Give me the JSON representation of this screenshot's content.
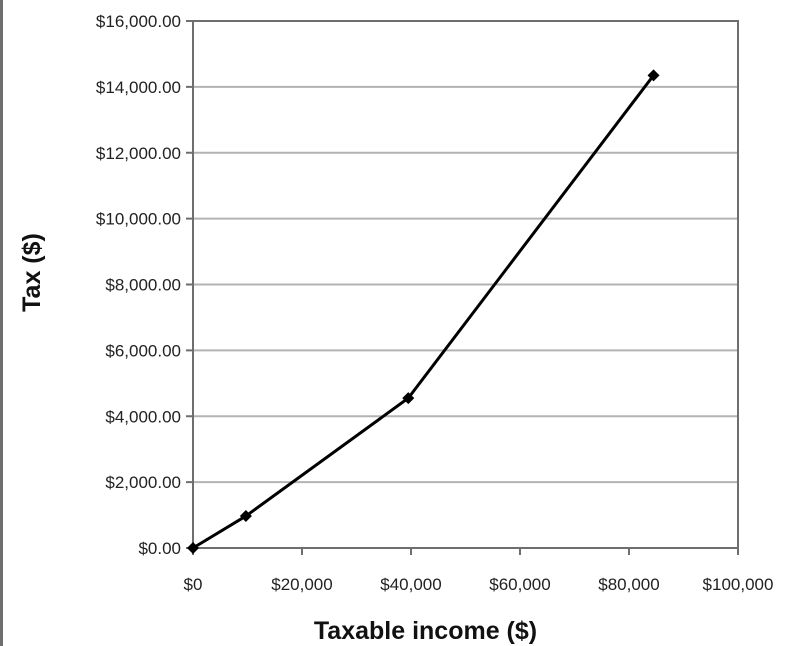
{
  "chart_data": {
    "type": "line",
    "title": "",
    "xlabel": "Taxable income ($)",
    "ylabel": "Tax ($)",
    "xlim": [
      0,
      100000
    ],
    "ylim": [
      0,
      16000
    ],
    "grid": "horizontal",
    "x_ticks": [
      0,
      20000,
      40000,
      60000,
      80000,
      100000
    ],
    "x_tick_labels": [
      "$0",
      "$20,000",
      "$40,000",
      "$60,000",
      "$80,000",
      "$100,000"
    ],
    "y_ticks": [
      0,
      2000,
      4000,
      6000,
      8000,
      10000,
      12000,
      14000,
      16000
    ],
    "y_tick_labels": [
      "$0.00",
      "$2,000.00",
      "$4,000.00",
      "$6,000.00",
      "$8,000.00",
      "$10,000.00",
      "$12,000.00",
      "$14,000.00",
      "$16,000.00"
    ],
    "series": [
      {
        "x": [
          0,
          9700,
          39500,
          84500
        ],
        "y": [
          0,
          970,
          4550,
          14350
        ]
      }
    ],
    "colors": {
      "line": "#000000",
      "marker": "#000000",
      "grid": "#b3b3b3",
      "axis": "#6e6e6e"
    }
  }
}
